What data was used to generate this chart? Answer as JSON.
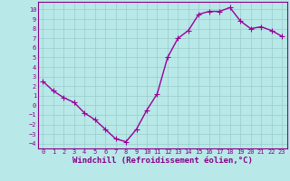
{
  "x": [
    0,
    1,
    2,
    3,
    4,
    5,
    6,
    7,
    8,
    9,
    10,
    11,
    12,
    13,
    14,
    15,
    16,
    17,
    18,
    19,
    20,
    21,
    22,
    23
  ],
  "y": [
    2.5,
    1.5,
    0.8,
    0.3,
    -0.8,
    -1.5,
    -2.5,
    -3.5,
    -3.8,
    -2.5,
    -0.5,
    1.2,
    5.0,
    7.0,
    7.8,
    9.5,
    9.8,
    9.8,
    10.2,
    8.8,
    8.0,
    8.2,
    7.8,
    7.2
  ],
  "line_color": "#990099",
  "bg_color": "#b8e8e8",
  "grid_color": "#99cccc",
  "xlabel": "Windchill (Refroidissement éolien,°C)",
  "ylim": [
    -4.5,
    10.8
  ],
  "xlim": [
    -0.5,
    23.5
  ],
  "yticks": [
    10,
    9,
    8,
    7,
    6,
    5,
    4,
    3,
    2,
    1,
    0,
    -1,
    -2,
    -3,
    -4
  ],
  "xticks": [
    0,
    1,
    2,
    3,
    4,
    5,
    6,
    7,
    8,
    9,
    10,
    11,
    12,
    13,
    14,
    15,
    16,
    17,
    18,
    19,
    20,
    21,
    22,
    23
  ],
  "label_color": "#880088",
  "marker": "+",
  "linewidth": 1.0,
  "markersize": 4,
  "tick_fontsize": 5.0,
  "xlabel_fontsize": 6.5
}
